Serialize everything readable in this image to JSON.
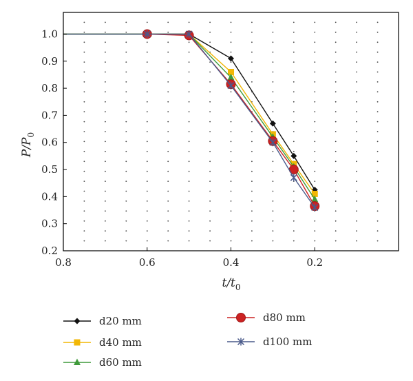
{
  "chart_data": {
    "type": "line",
    "xlabel": "t/t0",
    "xlabel_main": "t/t",
    "xlabel_sub": "0",
    "ylabel": "P/P0",
    "ylabel_main": "P/P",
    "ylabel_sub": "0",
    "xlim": [
      0.8,
      0.0
    ],
    "ylim": [
      0.2,
      1.08
    ],
    "x_ticks": [
      "0.8",
      "0.6",
      "0.4",
      "0.2"
    ],
    "y_ticks": [
      "0.2",
      "0.3",
      "0.4",
      "0.5",
      "0.6",
      "0.7",
      "0.8",
      "0.9",
      "1.0"
    ],
    "grid": "dotted",
    "legend_position": "bottom",
    "series": [
      {
        "name": "d20 mm",
        "color": "#111111",
        "marker": "diamond",
        "x": [
          0.8,
          0.6,
          0.5,
          0.4,
          0.3,
          0.25,
          0.2
        ],
        "y": [
          1.0,
          1.0,
          1.0,
          0.91,
          0.67,
          0.55,
          0.425
        ]
      },
      {
        "name": "d40 mm",
        "color": "#f2b705",
        "marker": "square",
        "x": [
          0.8,
          0.6,
          0.5,
          0.4,
          0.3,
          0.25,
          0.2
        ],
        "y": [
          1.0,
          1.0,
          1.0,
          0.86,
          0.63,
          0.52,
          0.41
        ]
      },
      {
        "name": "d60 mm",
        "color": "#3f9a3a",
        "marker": "triangle",
        "x": [
          0.8,
          0.6,
          0.5,
          0.4,
          0.3,
          0.25,
          0.2
        ],
        "y": [
          1.0,
          1.0,
          1.0,
          0.84,
          0.62,
          0.51,
          0.39
        ]
      },
      {
        "name": "d80 mm",
        "color": "#cc2222",
        "marker": "circle",
        "x": [
          0.6,
          0.5,
          0.4,
          0.3,
          0.25,
          0.2
        ],
        "y": [
          1.0,
          0.995,
          0.815,
          0.605,
          0.5,
          0.365
        ]
      },
      {
        "name": "d100 mm",
        "color": "#4a5a8a",
        "marker": "asterisk",
        "x": [
          0.8,
          0.6,
          0.5,
          0.4,
          0.3,
          0.25,
          0.2
        ],
        "y": [
          1.0,
          1.0,
          1.0,
          0.81,
          0.6,
          0.47,
          0.36
        ]
      }
    ]
  }
}
